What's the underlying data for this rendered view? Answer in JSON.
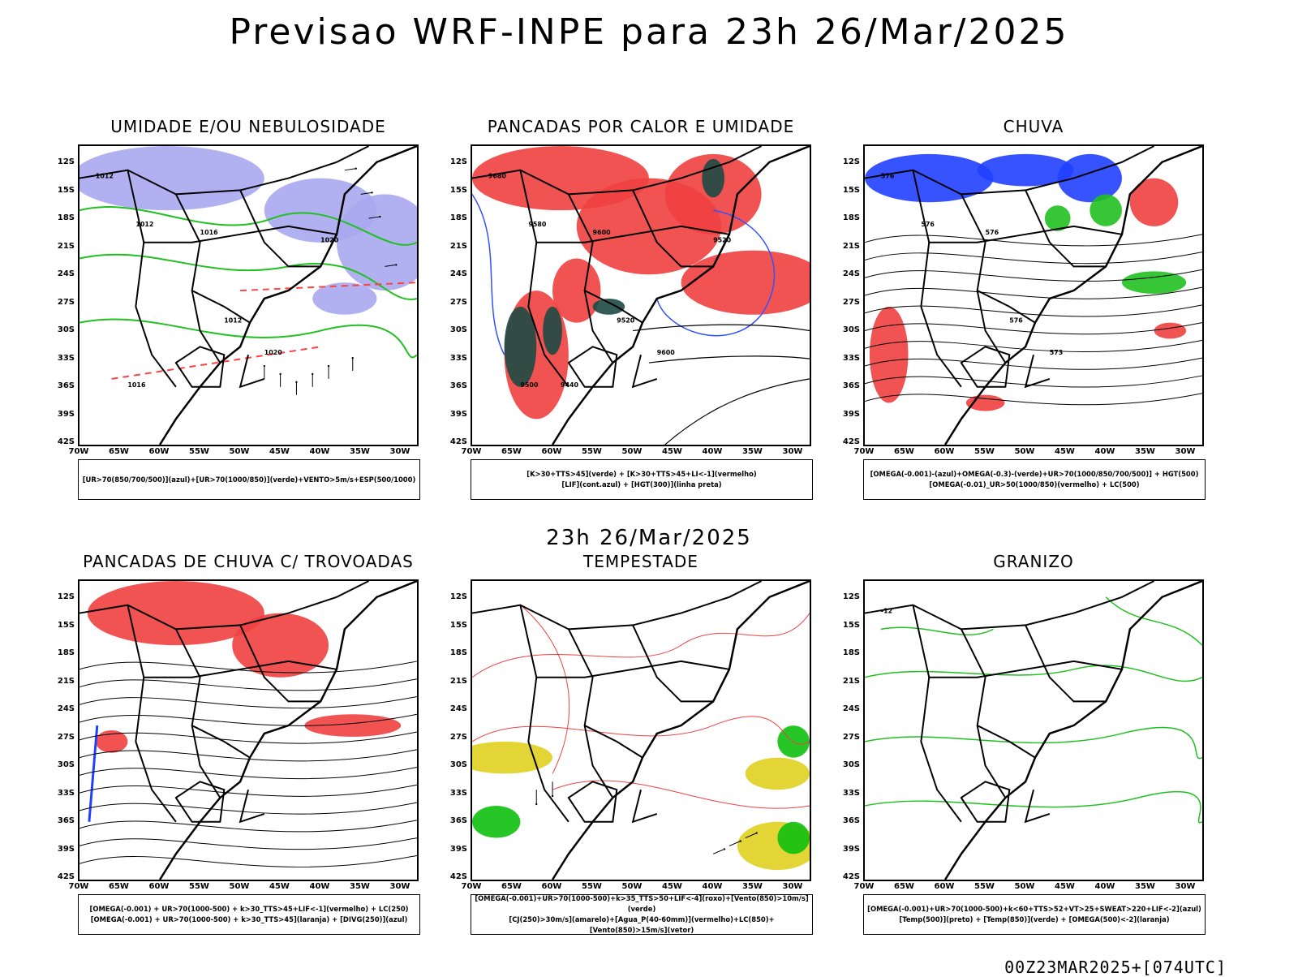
{
  "main_title": "Previsao WRF-INPE  para 23h 26/Mar/2025",
  "mid_title": "23h 26/Mar/2025",
  "footer": "00Z23MAR2025+[074UTC]",
  "lat_labels": [
    "12S",
    "15S",
    "18S",
    "21S",
    "24S",
    "27S",
    "30S",
    "33S",
    "36S",
    "39S",
    "42S"
  ],
  "lon_labels": [
    "70W",
    "65W",
    "60W",
    "55W",
    "50W",
    "45W",
    "40W",
    "35W",
    "30W"
  ],
  "panels": [
    {
      "title": "UMIDADE E/OU NEBULOSIDADE",
      "legend": [
        "[UR>70(850/700/500)](azul)+[UR>70(1000/850)](verde)+VENTO>5m/s+ESP(500/1000)"
      ],
      "contour_labels": [
        "1012",
        "1012",
        "1016",
        "1020",
        "1012",
        "1016",
        "1020"
      ],
      "colors": {
        "fill": "#a8a8f0",
        "line": "#20c020",
        "dash": "#ff4040"
      }
    },
    {
      "title": "PANCADAS POR CALOR E UMIDADE",
      "legend": [
        "[K>30+TTS>45](verde) + [K>30+TTS>45+LI<-1](vermelho)",
        "[LIF](cont.azul) + [HGT(300)](linha preta)"
      ],
      "contour_labels": [
        "9680",
        "9580",
        "9600",
        "9600",
        "9520",
        "9500",
        "9520",
        "9440"
      ],
      "colors": {
        "fill": "#f04040",
        "dark": "#1e4a44",
        "line": "#3050ff"
      }
    },
    {
      "title": "CHUVA",
      "legend": [
        "[OMEGA(-0.001)-(azul)+OMEGA(-0.3)-(verde)+UR>70(1000/850/700/500)] + HGT(500)",
        "[OMEGA(-0.01)_UR>50(1000/850)(vermelho) + LC(500)"
      ],
      "contour_labels": [
        "576",
        "576",
        "576",
        "573",
        "576"
      ],
      "colors": {
        "blue": "#2040ff",
        "green": "#20c020",
        "red": "#f04040"
      }
    },
    {
      "title": "PANCADAS DE CHUVA C/ TROVOADAS",
      "legend": [
        "[OMEGA(-0.001) + UR>70(1000-500) + k>30_TTS>45+LIF<-1](vermelho) + LC(250)",
        "[OMEGA(-0.001) + UR>70(1000-500) + k>30_TTS>45](laranja) + [DIVG(250)](azul)"
      ],
      "contour_labels": [],
      "colors": {
        "red": "#f04040",
        "blue": "#2040ff"
      }
    },
    {
      "title": "TEMPESTADE",
      "legend": [
        "[OMEGA(-0.001)+UR>70(1000-500)+k>35_TTS>50+LIF<-4](roxo)+[Vento(850)>10m/s](verde)",
        "[CJ(250)>30m/s](amarelo)+[Agua_P(40-60mm)](vermelho)+LC(850)+[Vento(850)>15m/s](vetor)"
      ],
      "contour_labels": [],
      "colors": {
        "yellow": "#e0d020",
        "green": "#10c010",
        "red": "#f04040"
      }
    },
    {
      "title": "GRANIZO",
      "legend": [
        "[OMEGA(-0.001)+UR>70(1000-500)+k<60+TTS>52+VT>25+SWEAT>220+LIF<-2](azul)",
        "[Temp(500)](preto) + [Temp(850)](verde) + [OMEGA(500)<-2](laranja)"
      ],
      "contour_labels": [
        "-12"
      ],
      "colors": {
        "green": "#20c020"
      }
    }
  ]
}
